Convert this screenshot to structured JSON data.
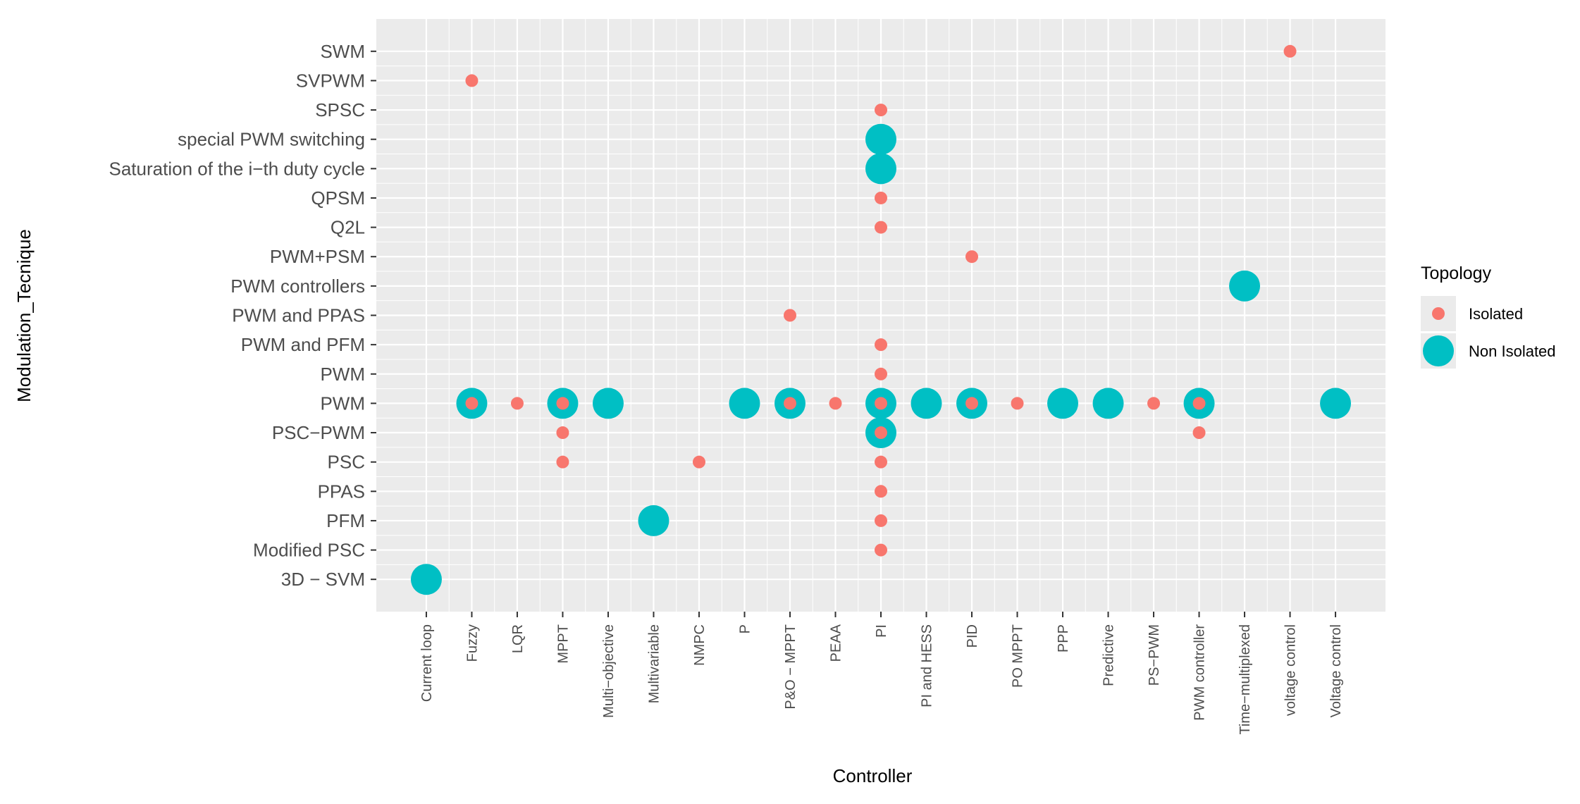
{
  "chart_data": {
    "type": "scatter",
    "title": "",
    "xlabel": "Controller",
    "ylabel": "Modulation_Tecnique",
    "grid": true,
    "legend": {
      "title": "Topology",
      "position": "right",
      "entries": [
        {
          "name": "Isolated",
          "color": "#F8766D",
          "size": "small"
        },
        {
          "name": "Non Isolated",
          "color": "#00BFC4",
          "size": "large"
        }
      ]
    },
    "x_categories": [
      "Current loop",
      "Fuzzy",
      "LQR",
      "MPPT",
      "Multi−objective",
      "Multivariable",
      "NMPC",
      "P",
      "P&O − MPPT",
      "PEAA",
      "PI",
      "PI and HESS",
      "PID",
      "PO MPPT",
      "PPP",
      "Predictive",
      "PS−PWM",
      "PWM controller",
      "Time−multiplexed",
      "voltage control",
      "Voltage control"
    ],
    "y_categories": [
      "3D − SVM",
      "Modified PSC",
      "PFM",
      "PPAS",
      "PSC",
      "PSC−PWM",
      "PWM",
      "PWM ",
      "PWM and PFM",
      "PWM and PPAS",
      "PWM controllers",
      "PWM+PSM",
      "Q2L",
      "QPSM",
      "Saturation of the i−th duty cycle",
      "special PWM switching",
      "SPSC",
      "SVPWM",
      "SWM"
    ],
    "series": [
      {
        "name": "Non Isolated",
        "color": "#00BFC4",
        "points": [
          {
            "x": "Current loop",
            "y": "3D − SVM"
          },
          {
            "x": "Fuzzy",
            "y": "PWM"
          },
          {
            "x": "MPPT",
            "y": "PWM"
          },
          {
            "x": "Multi−objective",
            "y": "PWM"
          },
          {
            "x": "Multivariable",
            "y": "PFM"
          },
          {
            "x": "P",
            "y": "PWM"
          },
          {
            "x": "P&O − MPPT",
            "y": "PWM"
          },
          {
            "x": "PI",
            "y": "PWM"
          },
          {
            "x": "PI",
            "y": "PSC−PWM"
          },
          {
            "x": "PI",
            "y": "Saturation of the i−th duty cycle"
          },
          {
            "x": "PI",
            "y": "special PWM switching"
          },
          {
            "x": "PI and HESS",
            "y": "PWM"
          },
          {
            "x": "PID",
            "y": "PWM"
          },
          {
            "x": "PPP",
            "y": "PWM"
          },
          {
            "x": "Predictive",
            "y": "PWM"
          },
          {
            "x": "PWM controller",
            "y": "PWM"
          },
          {
            "x": "Time−multiplexed",
            "y": "PWM controllers"
          },
          {
            "x": "Voltage control",
            "y": "PWM"
          }
        ]
      },
      {
        "name": "Isolated",
        "color": "#F8766D",
        "points": [
          {
            "x": "Fuzzy",
            "y": "SVPWM"
          },
          {
            "x": "Fuzzy",
            "y": "PWM"
          },
          {
            "x": "LQR",
            "y": "PWM"
          },
          {
            "x": "MPPT",
            "y": "PWM"
          },
          {
            "x": "MPPT",
            "y": "PSC−PWM"
          },
          {
            "x": "MPPT",
            "y": "PSC"
          },
          {
            "x": "NMPC",
            "y": "PSC"
          },
          {
            "x": "P&O − MPPT",
            "y": "PWM and PPAS"
          },
          {
            "x": "P&O − MPPT",
            "y": "PWM"
          },
          {
            "x": "PEAA",
            "y": "PWM"
          },
          {
            "x": "PI",
            "y": "SPSC"
          },
          {
            "x": "PI",
            "y": "QPSM"
          },
          {
            "x": "PI",
            "y": "Q2L"
          },
          {
            "x": "PI",
            "y": "PWM and PFM"
          },
          {
            "x": "PI",
            "y": "PWM "
          },
          {
            "x": "PI",
            "y": "PWM"
          },
          {
            "x": "PI",
            "y": "PSC−PWM"
          },
          {
            "x": "PI",
            "y": "PSC"
          },
          {
            "x": "PI",
            "y": "PPAS"
          },
          {
            "x": "PI",
            "y": "PFM"
          },
          {
            "x": "PI",
            "y": "Modified PSC"
          },
          {
            "x": "PID",
            "y": "PWM+PSM"
          },
          {
            "x": "PID",
            "y": "PWM"
          },
          {
            "x": "PO MPPT",
            "y": "PWM"
          },
          {
            "x": "PS−PWM",
            "y": "PWM"
          },
          {
            "x": "PWM controller",
            "y": "PWM"
          },
          {
            "x": "PWM controller",
            "y": "PSC−PWM"
          },
          {
            "x": "voltage control",
            "y": "SWM"
          }
        ]
      }
    ]
  }
}
